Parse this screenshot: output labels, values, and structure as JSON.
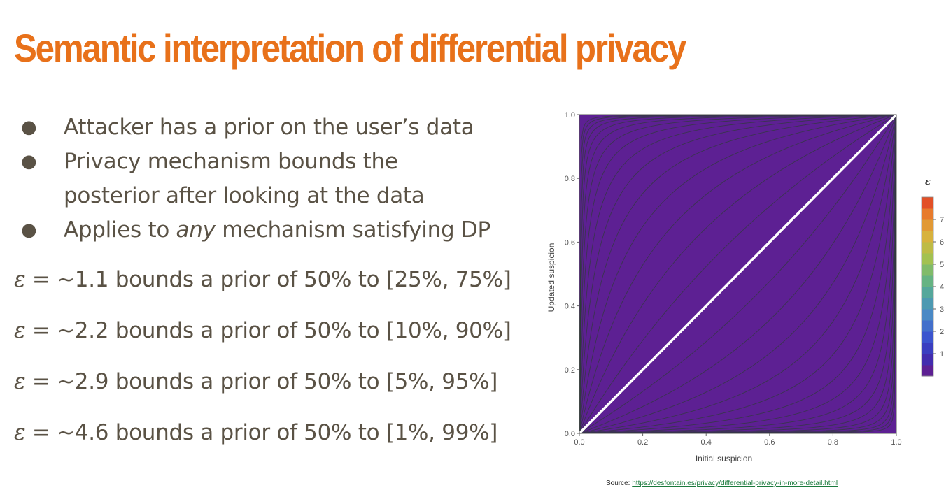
{
  "slide": {
    "title": "Semantic interpretation of differential privacy",
    "title_color": "#e8711a",
    "text_color": "#5a5245",
    "bullets": [
      {
        "parts": [
          "Attacker has a prior on the user’s data"
        ]
      },
      {
        "parts": [
          "Privacy mechanism bounds the"
        ]
      },
      {
        "parts": [
          "posterior after looking at the data"
        ],
        "continuation": true
      },
      {
        "parts": [
          "Applies to ",
          "any",
          " mechanism satisfying DP"
        ],
        "italic_index": 1
      }
    ],
    "epsilon_symbol": "ε",
    "epsilon_lines": [
      " = ~1.1 bounds a prior of 50% to [25%, 75%]",
      " = ~2.2 bounds a prior of 50% to [10%, 90%]",
      " = ~2.9 bounds a prior of 50% to [5%, 95%]",
      " = ~4.6 bounds a prior of 50% to [1%, 99%]"
    ],
    "source_label": "Source: ",
    "source_link": "https://desfontain.es/privacy/differential-privacy-in-more-detail.html"
  },
  "chart_data": {
    "type": "heatmap",
    "xlabel": "Initial suspicion",
    "ylabel": "Updated suspicion",
    "xlim": [
      0,
      1
    ],
    "ylim": [
      0,
      1
    ],
    "x_ticks": [
      "0.0",
      "0.2",
      "0.4",
      "0.6",
      "0.8",
      "1.0"
    ],
    "y_ticks": [
      "0.0",
      "0.2",
      "0.4",
      "0.6",
      "0.8",
      "1.0"
    ],
    "legend_title": "ε",
    "colorbar_ticks": [
      "1",
      "2",
      "3",
      "4",
      "5",
      "6",
      "7"
    ],
    "colorbar_range": [
      0,
      8
    ],
    "contour_levels": [
      0.5,
      1.0,
      1.5,
      2.0,
      2.5,
      3.0,
      3.5,
      4.0,
      4.5,
      5.0,
      5.5,
      6.0,
      6.5,
      7.0,
      7.5
    ],
    "function": "epsilon = |ln(y/(1-y)) - ln(x/(1-x))|",
    "diagonal_line_color": "#ffffff",
    "colormap": [
      "#6b1a85",
      "#3a2fb5",
      "#3b55cf",
      "#4a86c8",
      "#4fa3a5",
      "#6cb779",
      "#a9c24d",
      "#d6b33d",
      "#e8872f",
      "#e03b24"
    ]
  }
}
